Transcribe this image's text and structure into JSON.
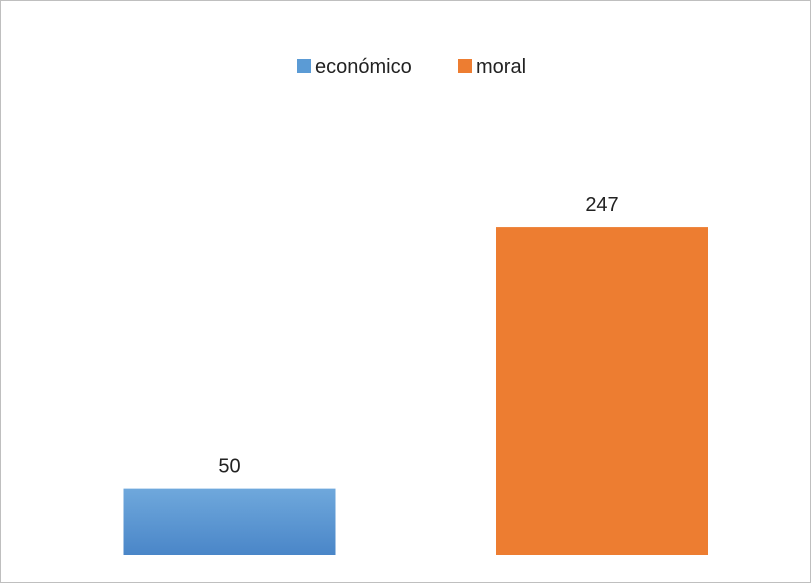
{
  "chart_data": {
    "type": "bar",
    "categories": [
      "económico",
      "moral"
    ],
    "series": [
      {
        "name": "económico",
        "color": "#5b9bd5",
        "values": [
          50,
          null
        ]
      },
      {
        "name": "moral",
        "color": "#ed7d31",
        "values": [
          null,
          247
        ]
      }
    ],
    "data_labels": [
      "50",
      "247"
    ],
    "legend_placement": "top-center",
    "grid": false,
    "ylim": [
      0,
      290
    ]
  }
}
